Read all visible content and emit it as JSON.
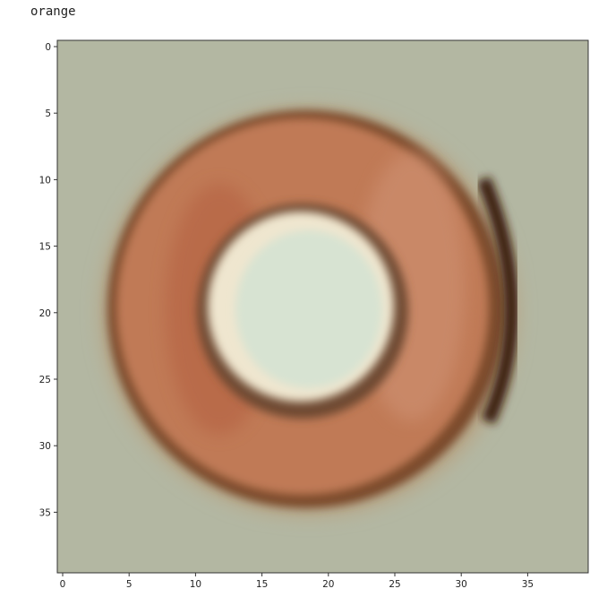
{
  "cell_output": {
    "label": "orange"
  },
  "image_axes": {
    "x_ticks": [
      "0",
      "5",
      "10",
      "15",
      "20",
      "25",
      "30",
      "35"
    ],
    "y_ticks": [
      "0",
      "5",
      "10",
      "15",
      "20",
      "25",
      "30",
      "35"
    ],
    "grid_size": 40
  },
  "image_content": {
    "subject": "blurred orange-brown ring (donut-shaped object) with pale center on grey-green background",
    "background_color": "#b3b7a2",
    "ring_color": "#c07a56",
    "ring_edge_color": "#6b3f22",
    "center_color": "#d7e3d2"
  }
}
